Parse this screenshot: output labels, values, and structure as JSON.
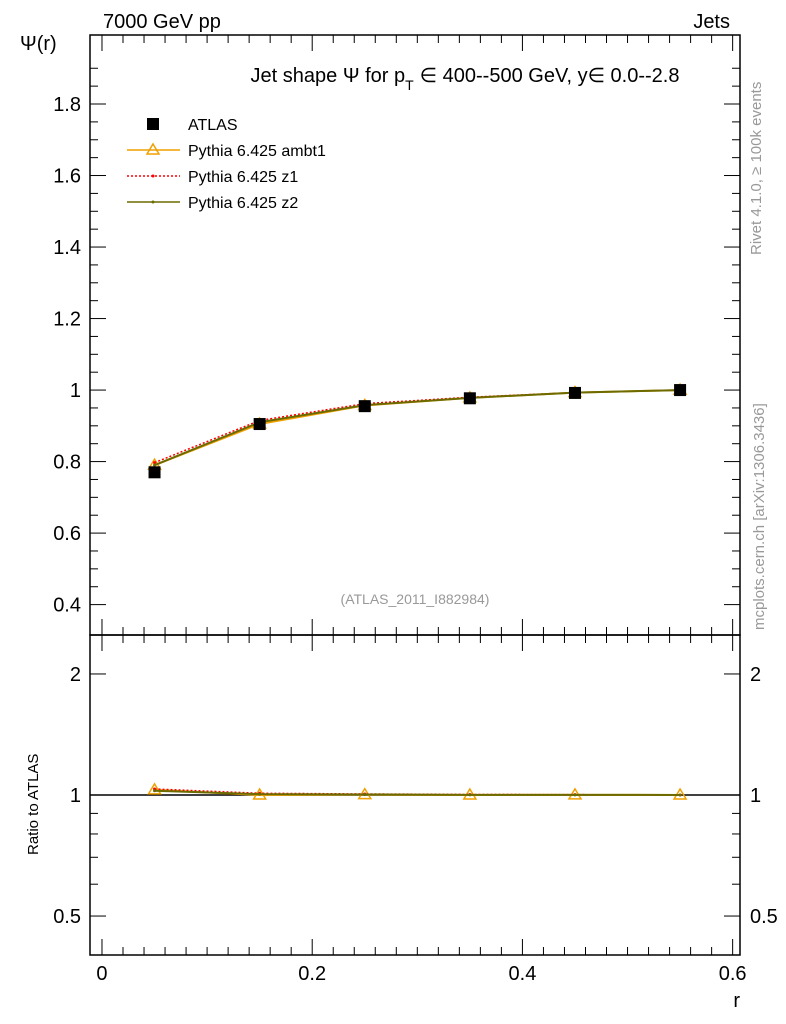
{
  "header": {
    "left": "7000 GeV pp",
    "right": "Jets"
  },
  "side": {
    "rivet": "Rivet 4.1.0, ≥ 100k events",
    "mcplots": "mcplots.cern.ch [arXiv:1306.3436]"
  },
  "chart_data": [
    {
      "type": "line",
      "title": "Jet shape Ψ for p_T ∈ 400--500 GeV, y∈ 0.0--2.8",
      "title_parts": {
        "a": "Jet shape Ψ for p",
        "sub": "T",
        "b": "∈ 400--500 GeV, y∈ 0.0--2.8"
      },
      "ylabel": "Ψ(r)",
      "xlabel": "r",
      "xlim": [
        -0.0114,
        0.607
      ],
      "ylim": [
        0.315,
        1.993
      ],
      "yticks": [
        0.4,
        0.6,
        0.8,
        1,
        1.2,
        1.4,
        1.6,
        1.8
      ],
      "ytick_labels": [
        "0.4",
        "0.6",
        "0.8",
        "1",
        "1.2",
        "1.4",
        "1.6",
        "1.8"
      ],
      "annotation": "(ATLAS_2011_I882984)",
      "legend_position": "top-left",
      "x": [
        0.05,
        0.15,
        0.25,
        0.35,
        0.45,
        0.55
      ],
      "series": [
        {
          "name": "ATLAS",
          "color": "#000000",
          "values": [
            0.77,
            0.905,
            0.955,
            0.977,
            0.992,
            1.0
          ]
        },
        {
          "name": "Pythia 6.425 ambt1",
          "color": "#f0a000",
          "values": [
            0.79,
            0.905,
            0.957,
            0.978,
            0.993,
            1.0
          ]
        },
        {
          "name": "Pythia 6.425 z1",
          "color": "#ff0000",
          "values": [
            0.797,
            0.915,
            0.962,
            0.98,
            0.993,
            1.0
          ]
        },
        {
          "name": "Pythia 6.425 z2",
          "color": "#6b6b00",
          "values": [
            0.79,
            0.91,
            0.958,
            0.978,
            0.993,
            1.0
          ]
        }
      ]
    },
    {
      "type": "line",
      "ylabel": "Ratio to ATLAS",
      "xlabel": "r",
      "xlim": [
        -0.0114,
        0.607
      ],
      "ylim": [
        0.4,
        2.5
      ],
      "yscale": "log",
      "yticks": [
        0.5,
        1,
        2
      ],
      "ytick_labels": [
        "0.5",
        "1",
        "2"
      ],
      "xticks": [
        0,
        0.2,
        0.4,
        0.6
      ],
      "xtick_labels": [
        "0",
        "0.2",
        "0.4",
        "0.6"
      ],
      "x": [
        0.05,
        0.15,
        0.25,
        0.35,
        0.45,
        0.55
      ],
      "series": [
        {
          "name": "Pythia 6.425 ambt1",
          "color": "#f0a000",
          "values": [
            1.03,
            1.0,
            1.002,
            1.0,
            1.001,
            1.0
          ]
        },
        {
          "name": "Pythia 6.425 z1",
          "color": "#ff0000",
          "values": [
            1.035,
            1.01,
            1.006,
            1.003,
            1.002,
            1.0
          ]
        },
        {
          "name": "Pythia 6.425 z2",
          "color": "#6b6b00",
          "values": [
            1.025,
            1.005,
            1.003,
            1.001,
            1.001,
            1.0
          ]
        }
      ]
    }
  ]
}
